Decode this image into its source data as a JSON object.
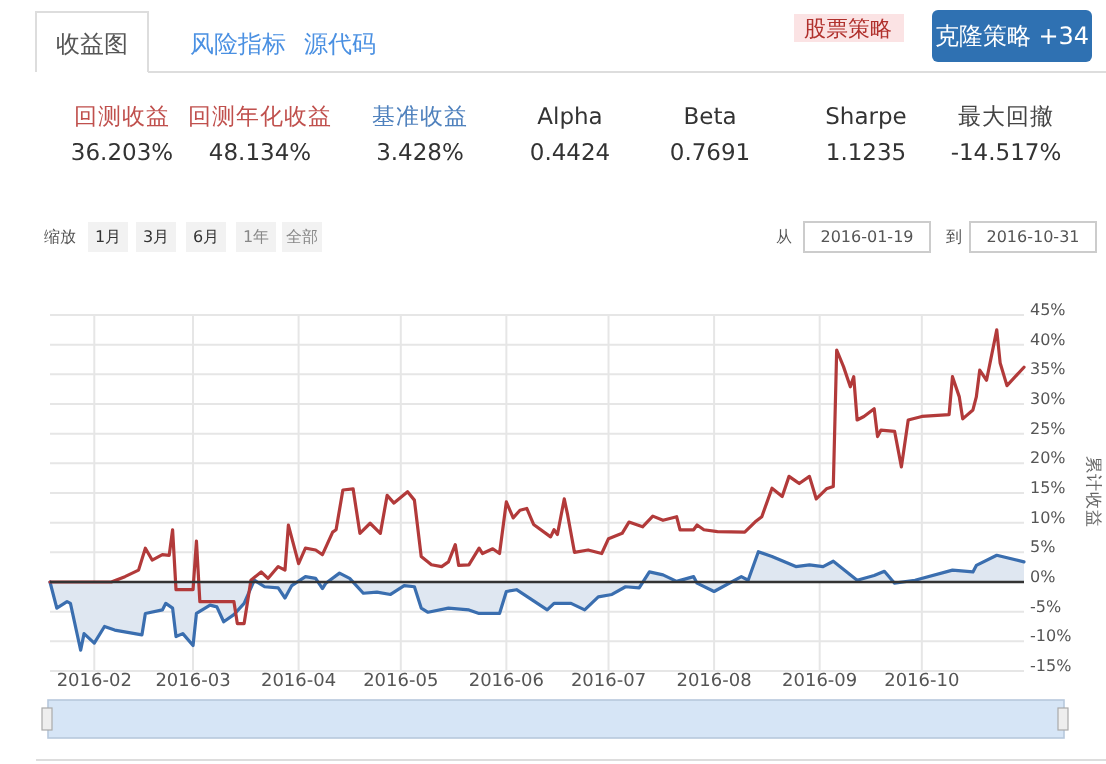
{
  "chart_data": {
    "type": "line",
    "ylabel": "累计收益",
    "annotations": [
      "收益图",
      "风险指标",
      "源代码",
      "股票策略",
      "克隆策略 +34",
      "回测收益",
      "回测年化收益",
      "基准收益",
      "Alpha",
      "Beta",
      "Sharpe",
      "最大回撤",
      "36.203%",
      "48.134%",
      "3.428%",
      "0.4424",
      "0.7691",
      "1.1235",
      "-14.517%",
      "缩放",
      "1月",
      "3月",
      "6月",
      "1年",
      "全部",
      "从",
      "2016-01-19",
      "到",
      "2016-10-31"
    ],
    "xlim": [
      "2016-01-19",
      "2016-10-31"
    ],
    "xticks": [
      {
        "value": "2016-02-01",
        "label": "2016-02"
      },
      {
        "value": "2016-03-01",
        "label": "2016-03"
      },
      {
        "value": "2016-04-01",
        "label": "2016-04"
      },
      {
        "value": "2016-05-01",
        "label": "2016-05"
      },
      {
        "value": "2016-06-01",
        "label": "2016-06"
      },
      {
        "value": "2016-07-01",
        "label": "2016-07"
      },
      {
        "value": "2016-08-01",
        "label": "2016-08"
      },
      {
        "value": "2016-09-01",
        "label": "2016-09"
      },
      {
        "value": "2016-10-01",
        "label": "2016-10"
      }
    ],
    "ylim": [
      -15,
      45
    ],
    "yticks": [
      {
        "value": -15,
        "label": "-15%"
      },
      {
        "value": -10,
        "label": "-10%"
      },
      {
        "value": -5,
        "label": "-5%"
      },
      {
        "value": 0,
        "label": "0%"
      },
      {
        "value": 5,
        "label": "5%"
      },
      {
        "value": 10,
        "label": "10%"
      },
      {
        "value": 15,
        "label": "15%"
      },
      {
        "value": 20,
        "label": "20%"
      },
      {
        "value": 25,
        "label": "25%"
      },
      {
        "value": 30,
        "label": "30%"
      },
      {
        "value": 35,
        "label": "35%"
      },
      {
        "value": 40,
        "label": "40%"
      },
      {
        "value": 45,
        "label": "45%"
      }
    ],
    "grid": true,
    "ref_lines": [
      {
        "axis": "y",
        "value": 0,
        "color": "#333333"
      }
    ],
    "series": [
      {
        "type": "area",
        "color": "#3a6eaf",
        "x": [
          "2016-01-19",
          "2016-01-21",
          "2016-01-24",
          "2016-01-25",
          "2016-01-28",
          "2016-01-29",
          "2016-02-01",
          "2016-02-04",
          "2016-02-07",
          "2016-02-15",
          "2016-02-16",
          "2016-02-21",
          "2016-02-22",
          "2016-02-24",
          "2016-02-25",
          "2016-02-27",
          "2016-03-01",
          "2016-03-02",
          "2016-03-06",
          "2016-03-08",
          "2016-03-10",
          "2016-03-13",
          "2016-03-16",
          "2016-03-19",
          "2016-03-22",
          "2016-03-26",
          "2016-03-28",
          "2016-03-30",
          "2016-04-03",
          "2016-04-06",
          "2016-04-08",
          "2016-04-09",
          "2016-04-13",
          "2016-04-16",
          "2016-04-20",
          "2016-04-24",
          "2016-04-28",
          "2016-05-02",
          "2016-05-05",
          "2016-05-07",
          "2016-05-09",
          "2016-05-15",
          "2016-05-21",
          "2016-05-24",
          "2016-05-30",
          "2016-06-01",
          "2016-06-04",
          "2016-06-08",
          "2016-06-13",
          "2016-06-15",
          "2016-06-20",
          "2016-06-24",
          "2016-06-28",
          "2016-07-02",
          "2016-07-06",
          "2016-07-10",
          "2016-07-13",
          "2016-07-17",
          "2016-07-21",
          "2016-07-26",
          "2016-07-27",
          "2016-08-01",
          "2016-08-09",
          "2016-08-11",
          "2016-08-14",
          "2016-08-18",
          "2016-08-25",
          "2016-08-29",
          "2016-09-02",
          "2016-09-05",
          "2016-09-12",
          "2016-09-17",
          "2016-09-20",
          "2016-09-23",
          "2016-09-29",
          "2016-10-10",
          "2016-10-16",
          "2016-10-17",
          "2016-10-23",
          "2016-10-31"
        ],
        "values": [
          0,
          -4.4,
          -3.3,
          -3.6,
          -11.5,
          -8.7,
          -10.3,
          -7.5,
          -8.1,
          -8.9,
          -5.3,
          -4.7,
          -3.6,
          -4.4,
          -9.2,
          -8.7,
          -10.7,
          -5.3,
          -3.9,
          -4.2,
          -6.7,
          -5.5,
          -3.6,
          0.3,
          -0.8,
          -1,
          -2.7,
          -0.6,
          0.9,
          0.6,
          -1.1,
          -0.2,
          1.5,
          0.6,
          -1.9,
          -1.7,
          -2.1,
          -0.6,
          -0.8,
          -4.4,
          -5.1,
          -4.4,
          -4.7,
          -5.3,
          -5.3,
          -1.6,
          -1.3,
          -2.8,
          -4.7,
          -3.6,
          -3.6,
          -4.7,
          -2.5,
          -2.1,
          -0.8,
          -1,
          1.7,
          1.2,
          0.1,
          0.9,
          -0.2,
          -1.6,
          0.9,
          0.3,
          5.1,
          4.3,
          2.6,
          2.9,
          2.6,
          3.5,
          0.3,
          1.1,
          1.8,
          -0.2,
          0.3,
          2,
          1.7,
          2.8,
          4.5,
          3.4
        ]
      },
      {
        "color": "#b23a3a",
        "x": [
          "2016-01-19",
          "2016-02-06",
          "2016-02-10",
          "2016-02-14",
          "2016-02-16",
          "2016-02-18",
          "2016-02-21",
          "2016-02-23",
          "2016-02-24",
          "2016-02-25",
          "2016-03-01",
          "2016-03-02",
          "2016-03-03",
          "2016-03-13",
          "2016-03-14",
          "2016-03-16",
          "2016-03-18",
          "2016-03-21",
          "2016-03-23",
          "2016-03-26",
          "2016-03-28",
          "2016-03-29",
          "2016-04-01",
          "2016-04-03",
          "2016-04-06",
          "2016-04-08",
          "2016-04-11",
          "2016-04-12",
          "2016-04-14",
          "2016-04-17",
          "2016-04-19",
          "2016-04-22",
          "2016-04-25",
          "2016-04-27",
          "2016-04-29",
          "2016-05-03",
          "2016-05-05",
          "2016-05-07",
          "2016-05-10",
          "2016-05-13",
          "2016-05-15",
          "2016-05-17",
          "2016-05-18",
          "2016-05-21",
          "2016-05-24",
          "2016-05-25",
          "2016-05-28",
          "2016-05-30",
          "2016-06-01",
          "2016-06-03",
          "2016-06-05",
          "2016-06-07",
          "2016-06-09",
          "2016-06-14",
          "2016-06-15",
          "2016-06-16",
          "2016-06-18",
          "2016-06-19",
          "2016-06-21",
          "2016-06-25",
          "2016-06-29",
          "2016-07-01",
          "2016-07-05",
          "2016-07-07",
          "2016-07-11",
          "2016-07-14",
          "2016-07-17",
          "2016-07-21",
          "2016-07-22",
          "2016-07-26",
          "2016-07-27",
          "2016-07-29",
          "2016-08-02",
          "2016-08-10",
          "2016-08-13",
          "2016-08-15",
          "2016-08-18",
          "2016-08-21",
          "2016-08-23",
          "2016-08-25",
          "2016-08-26",
          "2016-08-29",
          "2016-08-31",
          "2016-09-03",
          "2016-09-05",
          "2016-09-06",
          "2016-09-08",
          "2016-09-10",
          "2016-09-11",
          "2016-09-12",
          "2016-09-14",
          "2016-09-17",
          "2016-09-18",
          "2016-09-19",
          "2016-09-23",
          "2016-09-25",
          "2016-09-27",
          "2016-10-01",
          "2016-10-09",
          "2016-10-10",
          "2016-10-12",
          "2016-10-13",
          "2016-10-16",
          "2016-10-17",
          "2016-10-18",
          "2016-10-20",
          "2016-10-23",
          "2016-10-24",
          "2016-10-26",
          "2016-10-31"
        ],
        "values": [
          0,
          0,
          0.9,
          2,
          5.7,
          3.7,
          4.6,
          4.5,
          8.8,
          -1.3,
          -1.3,
          6.9,
          -3.3,
          -3.3,
          -7,
          -7,
          0.3,
          1.7,
          0.6,
          2.6,
          2,
          9.6,
          3.1,
          5.7,
          5.4,
          4.6,
          8.4,
          8.8,
          15.5,
          15.7,
          8.2,
          9.9,
          8.2,
          14.6,
          13.3,
          15.2,
          13.8,
          4.3,
          2.9,
          2.6,
          3.4,
          6.3,
          2.8,
          2.9,
          5.7,
          4.8,
          5.6,
          4.8,
          13.5,
          10.8,
          12.1,
          12.4,
          9.7,
          7.6,
          8.8,
          8,
          14,
          11.3,
          5,
          5.4,
          4.8,
          7.3,
          8.2,
          10.1,
          9.3,
          11.1,
          10.4,
          11,
          8.8,
          8.8,
          9.6,
          8.8,
          8.5,
          8.4,
          10.1,
          11,
          15.8,
          14.4,
          17.8,
          17,
          16.6,
          17.8,
          14,
          15.7,
          16.1,
          39.1,
          36.3,
          32.9,
          34.6,
          27.3,
          27.9,
          29.2,
          24.5,
          25.6,
          25.4,
          19.4,
          27.3,
          27.9,
          28.2,
          34.6,
          31.2,
          27.5,
          29,
          31.2,
          35.7,
          34,
          42.5,
          36.9,
          33.1,
          36.2
        ]
      }
    ]
  }
}
